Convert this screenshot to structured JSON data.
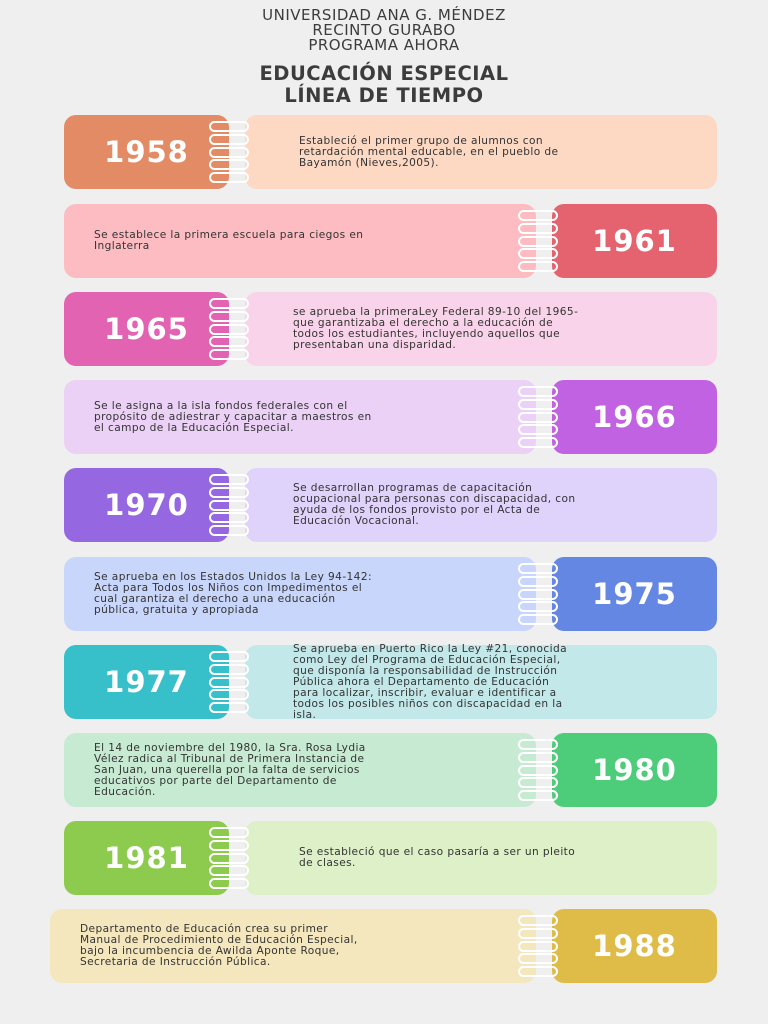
{
  "header": {
    "line1": "UNIVERSIDAD ANA G. MÉNDEZ",
    "line2": "RECINTO GURABO",
    "line3": "PROGRAMA AHORA",
    "title1": "EDUCACIÓN ESPECIAL",
    "title2": "LÍNEA DE TIEMPO"
  },
  "events": [
    {
      "year": "1958",
      "text": "Estableció el primer grupo de alumnos con\nretardación mental educable, en el pueblo de\nBayamón (Nieves,2005).",
      "year_color": "#e38b65",
      "card_color": "#fdd9c4"
    },
    {
      "year": "1961",
      "text": "Se establece la primera escuela para ciegos en\nInglaterra",
      "year_color": "#e4636f",
      "card_color": "#fdbcc1"
    },
    {
      "year": "1965",
      "text": "se aprueba la primeraLey Federal 89-10 del 1965-\nque garantizaba el derecho a la educación de\ntodos los estudiantes, incluyendo aquellos que\npresentaban una disparidad.",
      "year_color": "#e163b1",
      "card_color": "#f9d3ea"
    },
    {
      "year": "1966",
      "text": "Se le asigna a la isla fondos federales con el\npropósito de adiestrar y capacitar a maestros en\nel campo de la Educación Especial.",
      "year_color": "#c162e2",
      "card_color": "#ebd1f6"
    },
    {
      "year": "1970",
      "text": "Se desarrollan programas de capacitación\nocupacional para personas con discapacidad, con\nayuda de los fondos provisto por el Acta de\nEducación Vocacional.",
      "year_color": "#9567e0",
      "card_color": "#dfd2fb"
    },
    {
      "year": "1975",
      "text": "Se aprueba en los Estados Unidos la Ley 94-142:\nActa para Todos los Niños con Impedimentos  el\ncual garantiza el derecho a una educación\npública, gratuita y apropiada",
      "year_color": "#6487e4",
      "card_color": "#c9d6fb"
    },
    {
      "year": "1977",
      "text": "Se aprueba en Puerto Rico la Ley #21, conocida\ncomo Ley del Programa de Educación Especial,\nque disponía la responsabilidad de Instrucción\nPública  ahora el Departamento de Educación\npara localizar, inscribir, evaluar e identificar a\ntodos los posibles niños con discapacidad en la\nisla.",
      "year_color": "#37bfca",
      "card_color": "#c2e8ea"
    },
    {
      "year": "1980",
      "text": "El 14 de noviembre del 1980, la Sra. Rosa Lydia\nVélez radica al Tribunal de Primera Instancia de\nSan Juan, una querella por la falta de servicios\neducativos por parte del Departamento de\nEducación.",
      "year_color": "#4dcc7a",
      "card_color": "#c7ebd2"
    },
    {
      "year": "1981",
      "text": "Se estableció que el caso pasaría a ser un pleito\nde clases.",
      "year_color": "#8ccb4e",
      "card_color": "#def0c8"
    },
    {
      "year": "1988",
      "text": "Departamento de Educación crea su primer\nManual de Procedimiento de Educación Especial,\nbajo la incumbencia de Awilda Aponte Roque,\nSecretaria de Instrucción Pública.",
      "year_color": "#dfbb47",
      "card_color": "#f4e6bd"
    }
  ]
}
